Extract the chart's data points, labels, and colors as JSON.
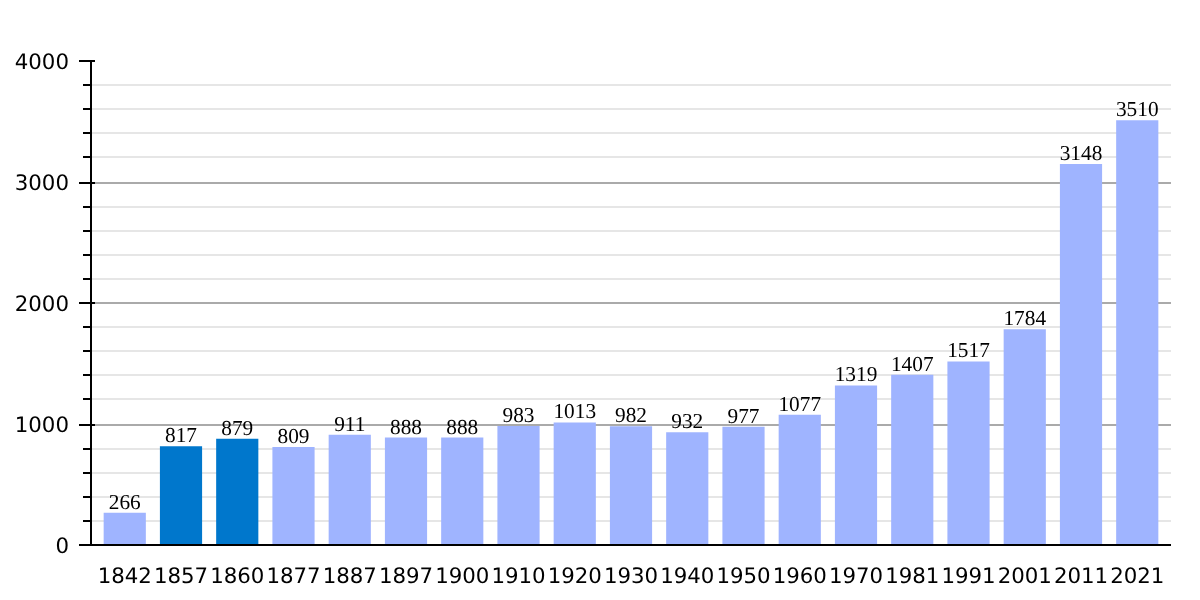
{
  "chart_data": {
    "type": "bar",
    "categories": [
      "1842",
      "1857",
      "1860",
      "1877",
      "1887",
      "1897",
      "1900",
      "1910",
      "1920",
      "1930",
      "1940",
      "1950",
      "1960",
      "1970",
      "1981",
      "1991",
      "2001",
      "2011",
      "2021"
    ],
    "values": [
      266,
      817,
      879,
      809,
      911,
      888,
      888,
      983,
      1013,
      982,
      932,
      977,
      1077,
      1319,
      1407,
      1517,
      1784,
      3148,
      3510
    ],
    "colors": [
      "#9fb4ff",
      "#0077cc",
      "#0077cc",
      "#9fb4ff",
      "#9fb4ff",
      "#9fb4ff",
      "#9fb4ff",
      "#9fb4ff",
      "#9fb4ff",
      "#9fb4ff",
      "#9fb4ff",
      "#9fb4ff",
      "#9fb4ff",
      "#9fb4ff",
      "#9fb4ff",
      "#9fb4ff",
      "#9fb4ff",
      "#9fb4ff",
      "#9fb4ff"
    ],
    "ylim": [
      0,
      4000
    ],
    "yticks": [
      0,
      1000,
      2000,
      3000,
      4000
    ],
    "grid": "y",
    "data_labels": true
  }
}
